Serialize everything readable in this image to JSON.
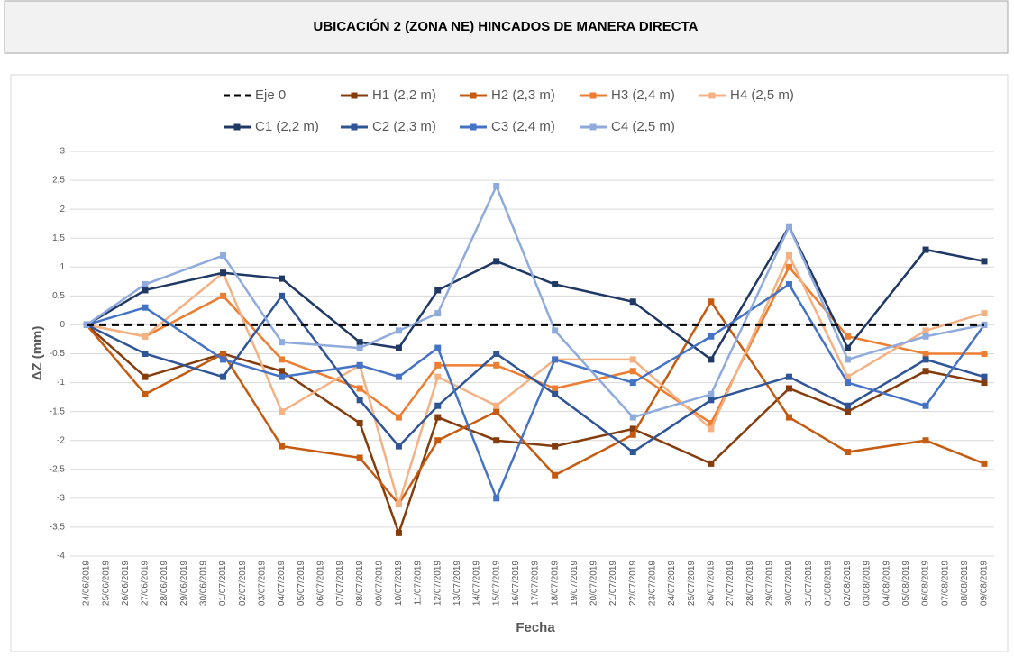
{
  "chart_data": {
    "type": "line",
    "title": "UBICACIÓN 2 (ZONA NE) HINCADOS DE MANERA DIRECTA",
    "y_label": "ΔZ (mm)",
    "x_label": "Fecha",
    "categories": [
      "24/06/2019",
      "25/06/2019",
      "26/06/2019",
      "27/06/2019",
      "28/06/2019",
      "29/06/2019",
      "30/06/2019",
      "01/07/2019",
      "02/07/2019",
      "03/07/2019",
      "04/07/2019",
      "05/07/2019",
      "06/07/2019",
      "07/07/2019",
      "08/07/2019",
      "09/07/2019",
      "10/07/2019",
      "11/07/2019",
      "12/07/2019",
      "13/07/2019",
      "14/07/2019",
      "15/07/2019",
      "16/07/2019",
      "17/07/2019",
      "18/07/2019",
      "19/07/2019",
      "20/07/2019",
      "21/07/2019",
      "22/07/2019",
      "23/07/2019",
      "24/07/2019",
      "25/07/2019",
      "26/07/2019",
      "27/07/2019",
      "28/07/2019",
      "29/07/2019",
      "30/07/2019",
      "31/07/2019",
      "01/08/2019",
      "02/08/2019",
      "03/08/2019",
      "04/08/2019",
      "05/08/2019",
      "06/08/2019",
      "07/08/2019",
      "08/08/2019",
      "09/08/2019"
    ],
    "x": [
      "24/06/2019",
      "27/06/2019",
      "01/07/2019",
      "04/07/2019",
      "08/07/2019",
      "10/07/2019",
      "12/07/2019",
      "15/07/2019",
      "18/07/2019",
      "22/07/2019",
      "26/07/2019",
      "30/07/2019",
      "02/08/2019",
      "06/08/2019",
      "09/08/2019"
    ],
    "series": [
      {
        "name": "Eje 0",
        "color": "#000000",
        "style": "dashed",
        "values": [
          0,
          0,
          0,
          0,
          0,
          0,
          0,
          0,
          0,
          0,
          0,
          0,
          0,
          0,
          0
        ]
      },
      {
        "name": "H1 (2,2 m)",
        "color": "#843c0c",
        "values": [
          0,
          -0.9,
          -0.5,
          -0.8,
          -1.7,
          -3.6,
          -1.6,
          -2.0,
          -2.1,
          -1.8,
          -2.4,
          -1.1,
          -1.5,
          -0.8,
          -1.0
        ]
      },
      {
        "name": "H2 (2,3 m)",
        "color": "#c55a11",
        "values": [
          0,
          -1.2,
          -0.5,
          -2.1,
          -2.3,
          -3.1,
          -2.0,
          -1.5,
          -2.6,
          -1.9,
          0.4,
          -1.6,
          -2.2,
          -2.0,
          -2.4
        ]
      },
      {
        "name": "H3 (2,4 m)",
        "color": "#ed7d31",
        "values": [
          0,
          -0.2,
          0.5,
          -0.6,
          -1.1,
          -1.6,
          -0.7,
          -0.7,
          -1.1,
          -0.8,
          -1.7,
          1.0,
          -0.2,
          -0.5,
          -0.5
        ]
      },
      {
        "name": "H4 (2,5 m)",
        "color": "#f4b183",
        "values": [
          0,
          -0.2,
          0.9,
          -1.5,
          -0.7,
          -3.1,
          -0.9,
          -1.4,
          -0.6,
          -0.6,
          -1.8,
          1.2,
          -0.9,
          -0.1,
          0.2
        ]
      },
      {
        "name": "C1 (2,2 m)",
        "color": "#203864",
        "values": [
          0,
          0.6,
          0.9,
          0.8,
          -0.3,
          -0.4,
          0.6,
          1.1,
          0.7,
          0.4,
          -0.6,
          1.7,
          -0.4,
          1.3,
          1.1
        ]
      },
      {
        "name": "C2 (2,3 m)",
        "color": "#2f5597",
        "values": [
          0,
          -0.5,
          -0.9,
          0.5,
          -1.3,
          -2.1,
          -1.4,
          -0.5,
          -1.2,
          -2.2,
          -1.3,
          -0.9,
          -1.4,
          -0.6,
          -0.9
        ]
      },
      {
        "name": "C3 (2,4 m)",
        "color": "#4472c4",
        "values": [
          0,
          0.3,
          -0.6,
          -0.9,
          -0.7,
          -0.9,
          -0.4,
          -3.0,
          -0.6,
          -1.0,
          -0.2,
          0.7,
          -1.0,
          -1.4,
          0.0
        ]
      },
      {
        "name": "C4 (2,5 m)",
        "color": "#8faadc",
        "values": [
          0,
          0.7,
          1.2,
          -0.3,
          -0.4,
          -0.1,
          0.2,
          2.4,
          -0.1,
          -1.6,
          -1.2,
          1.7,
          -0.6,
          -0.2,
          0.0
        ]
      }
    ],
    "ylim": [
      -4,
      3
    ],
    "yticks": [
      -4,
      {
        "value": -3.5,
        "label": "-3,5"
      },
      -3,
      {
        "value": -2.5,
        "label": "-2,5"
      },
      -2,
      {
        "value": -1.5,
        "label": "-1,5"
      },
      -1,
      {
        "value": -0.5,
        "label": "-0,5"
      },
      0,
      {
        "value": 0.5,
        "label": "0,5"
      },
      1,
      {
        "value": 1.5,
        "label": "1,5"
      },
      2,
      {
        "value": 2.5,
        "label": "2,5"
      },
      3
    ],
    "grid": true,
    "legend": "top"
  }
}
